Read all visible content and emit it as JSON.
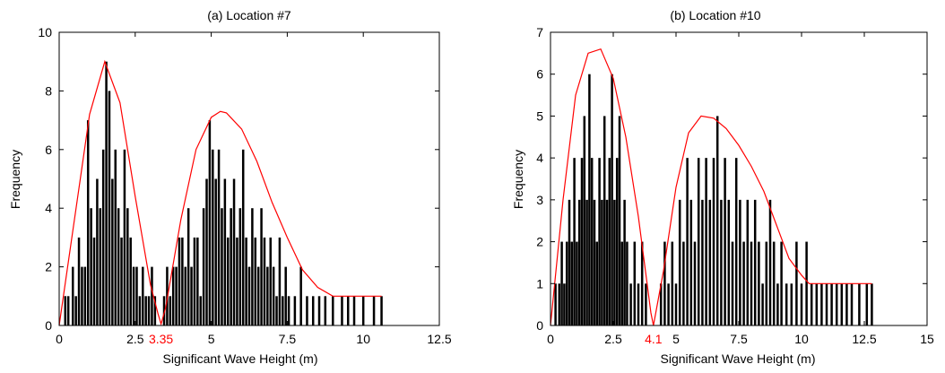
{
  "colors": {
    "bars": "#000000",
    "fit_curve": "#ff0000",
    "threshold_label": "#ff0000",
    "axes": "#000000"
  },
  "chart_data": [
    {
      "type": "bar",
      "title": "(a) Location #7",
      "xlabel": "Significant Wave Height (m)",
      "ylabel": "Frequency",
      "xlim": [
        0,
        12.5
      ],
      "ylim": [
        0,
        10
      ],
      "xticks": [
        "0",
        "2.5",
        "5",
        "7.5",
        "10",
        "12.5"
      ],
      "yticks": [
        "0",
        "2",
        "4",
        "6",
        "8",
        "10"
      ],
      "threshold": {
        "x": 3.35,
        "label": "3.35"
      },
      "bars": {
        "x": [
          0.2,
          0.3,
          0.45,
          0.55,
          0.65,
          0.75,
          0.85,
          0.95,
          1.05,
          1.15,
          1.25,
          1.35,
          1.45,
          1.55,
          1.65,
          1.75,
          1.85,
          1.95,
          2.05,
          2.15,
          2.25,
          2.35,
          2.45,
          2.55,
          2.65,
          2.75,
          2.85,
          2.95,
          3.05,
          3.15,
          3.45,
          3.55,
          3.65,
          3.75,
          3.85,
          3.95,
          4.05,
          4.15,
          4.25,
          4.35,
          4.45,
          4.55,
          4.65,
          4.75,
          4.85,
          4.95,
          5.05,
          5.15,
          5.25,
          5.35,
          5.45,
          5.55,
          5.65,
          5.75,
          5.85,
          5.95,
          6.05,
          6.15,
          6.25,
          6.35,
          6.45,
          6.55,
          6.65,
          6.75,
          6.85,
          6.95,
          7.05,
          7.15,
          7.25,
          7.35,
          7.45,
          7.55,
          7.75,
          7.95,
          8.15,
          8.35,
          8.55,
          8.75,
          9.0,
          9.3,
          9.5,
          9.7,
          10.0,
          10.35,
          10.6
        ],
        "values": [
          1,
          1,
          2,
          1,
          3,
          2,
          2,
          7,
          4,
          3,
          5,
          4,
          6,
          9,
          8,
          5,
          6,
          4,
          3,
          6,
          4,
          3,
          2,
          2,
          1,
          2,
          1,
          1,
          2,
          1,
          1,
          2,
          1,
          2,
          2,
          3,
          3,
          2,
          4,
          2,
          3,
          3,
          1,
          4,
          5,
          7,
          6,
          5,
          6,
          4,
          5,
          3,
          4,
          5,
          3,
          4,
          6,
          3,
          2,
          4,
          3,
          2,
          4,
          3,
          2,
          3,
          2,
          1,
          3,
          1,
          2,
          1,
          1,
          2,
          1,
          1,
          1,
          1,
          1,
          1,
          1,
          1,
          1,
          1,
          1
        ]
      },
      "curve": {
        "x": [
          0,
          0.5,
          1,
          1.5,
          2,
          2.5,
          3,
          3.25,
          3.35,
          3.5,
          4,
          4.5,
          5,
          5.3,
          5.5,
          6,
          6.5,
          7,
          7.5,
          8,
          8.5,
          9,
          9.5,
          10,
          10.6
        ],
        "y": [
          0,
          3.6,
          7.2,
          9.0,
          7.6,
          4.4,
          1.4,
          0.4,
          0.05,
          0.6,
          3.6,
          6.0,
          7.1,
          7.3,
          7.25,
          6.7,
          5.6,
          4.2,
          3.0,
          1.9,
          1.3,
          1.0,
          1.0,
          1.0,
          1.0
        ]
      }
    },
    {
      "type": "bar",
      "title": "(b) Location #10",
      "xlabel": "Significant Wave Height (m)",
      "ylabel": "Frequency",
      "xlim": [
        0,
        15
      ],
      "ylim": [
        0,
        7
      ],
      "xticks": [
        "0",
        "2.5",
        "5",
        "7.5",
        "10",
        "12.5",
        "15"
      ],
      "yticks": [
        "0",
        "1",
        "2",
        "3",
        "4",
        "5",
        "6",
        "7"
      ],
      "threshold": {
        "x": 4.1,
        "label": "4.1"
      },
      "bars": {
        "x": [
          0.2,
          0.35,
          0.45,
          0.55,
          0.65,
          0.75,
          0.85,
          0.95,
          1.05,
          1.15,
          1.25,
          1.35,
          1.45,
          1.55,
          1.65,
          1.75,
          1.85,
          1.95,
          2.05,
          2.15,
          2.25,
          2.35,
          2.45,
          2.55,
          2.65,
          2.75,
          2.85,
          2.95,
          3.05,
          3.2,
          3.35,
          3.5,
          3.65,
          3.8,
          4.4,
          4.55,
          4.7,
          4.85,
          5.0,
          5.15,
          5.3,
          5.45,
          5.6,
          5.75,
          5.9,
          6.05,
          6.2,
          6.35,
          6.5,
          6.65,
          6.8,
          6.95,
          7.1,
          7.25,
          7.4,
          7.55,
          7.7,
          7.85,
          8.0,
          8.15,
          8.3,
          8.45,
          8.6,
          8.75,
          8.9,
          9.05,
          9.2,
          9.4,
          9.6,
          9.8,
          10.0,
          10.2,
          10.4,
          10.6,
          10.8,
          11.0,
          11.2,
          11.4,
          11.6,
          11.8,
          12.0,
          12.3,
          12.6,
          12.8
        ],
        "values": [
          1,
          1,
          2,
          1,
          2,
          3,
          2,
          4,
          2,
          3,
          4,
          5,
          3,
          6,
          4,
          3,
          2,
          4,
          3,
          5,
          3,
          4,
          6,
          3,
          4,
          5,
          2,
          3,
          2,
          1,
          2,
          1,
          2,
          1,
          1,
          2,
          1,
          2,
          1,
          3,
          2,
          4,
          3,
          2,
          4,
          3,
          4,
          3,
          4,
          5,
          3,
          4,
          3,
          2,
          4,
          3,
          2,
          3,
          2,
          3,
          2,
          1,
          2,
          3,
          2,
          1,
          2,
          1,
          1,
          2,
          1,
          2,
          1,
          1,
          1,
          1,
          1,
          1,
          1,
          1,
          1,
          1,
          1,
          1
        ]
      },
      "curve": {
        "x": [
          0,
          0.5,
          1,
          1.5,
          2,
          2.5,
          3,
          3.5,
          4,
          4.1,
          4.5,
          5,
          5.5,
          6,
          6.5,
          7,
          7.5,
          8,
          8.5,
          9,
          9.5,
          10,
          10.3,
          10.6,
          11,
          12,
          12.8
        ],
        "y": [
          0,
          3.0,
          5.5,
          6.5,
          6.6,
          5.9,
          4.5,
          2.6,
          0.3,
          0.0,
          1.3,
          3.3,
          4.6,
          5.0,
          4.95,
          4.7,
          4.3,
          3.8,
          3.2,
          2.4,
          1.6,
          1.2,
          1.0,
          1.0,
          1.0,
          1.0,
          1.0
        ]
      }
    }
  ]
}
